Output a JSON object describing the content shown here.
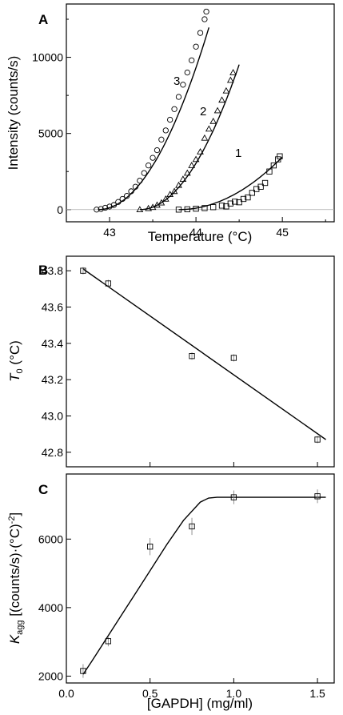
{
  "chart_data": [
    {
      "panel": "A",
      "type": "scatter",
      "xlabel": "Temperature (°C)",
      "ylabel": "Intensity (counts/s)",
      "xlim": [
        42.5,
        45.6
      ],
      "ylim": [
        -800,
        13500
      ],
      "xticks": [
        "43",
        "44",
        "45"
      ],
      "yticks": [
        "0",
        "5000",
        "10000"
      ],
      "series": [
        {
          "name": "1",
          "marker": "square",
          "fit": {
            "T0": 43.8,
            "K": 2400,
            "xmax": 45.0
          },
          "points": [
            [
              43.8,
              0
            ],
            [
              43.9,
              20
            ],
            [
              44.0,
              60
            ],
            [
              44.1,
              100
            ],
            [
              44.2,
              160
            ],
            [
              44.3,
              260
            ],
            [
              44.35,
              210
            ],
            [
              44.4,
              400
            ],
            [
              44.45,
              520
            ],
            [
              44.5,
              480
            ],
            [
              44.55,
              700
            ],
            [
              44.6,
              800
            ],
            [
              44.65,
              1100
            ],
            [
              44.7,
              1350
            ],
            [
              44.75,
              1500
            ],
            [
              44.8,
              1750
            ],
            [
              44.85,
              2500
            ],
            [
              44.9,
              2900
            ],
            [
              44.95,
              3300
            ],
            [
              44.97,
              3500
            ]
          ]
        },
        {
          "name": "2",
          "marker": "triangle",
          "fit": {
            "T0": 43.35,
            "K": 7200,
            "xmax": 44.5
          },
          "points": [
            [
              43.35,
              0
            ],
            [
              43.45,
              80
            ],
            [
              43.5,
              150
            ],
            [
              43.55,
              300
            ],
            [
              43.6,
              450
            ],
            [
              43.65,
              700
            ],
            [
              43.7,
              1000
            ],
            [
              43.75,
              1200
            ],
            [
              43.8,
              1600
            ],
            [
              43.85,
              2000
            ],
            [
              43.9,
              2400
            ],
            [
              43.95,
              2900
            ],
            [
              44.0,
              3300
            ],
            [
              44.05,
              3800
            ],
            [
              44.1,
              4700
            ],
            [
              44.15,
              5300
            ],
            [
              44.2,
              5800
            ],
            [
              44.25,
              6500
            ],
            [
              44.3,
              7200
            ],
            [
              44.35,
              7800
            ],
            [
              44.4,
              8500
            ],
            [
              44.43,
              9000
            ]
          ]
        },
        {
          "name": "3",
          "marker": "circle",
          "fit": {
            "T0": 42.87,
            "K": 7300,
            "xmax": 44.15
          },
          "points": [
            [
              42.85,
              0
            ],
            [
              42.9,
              40
            ],
            [
              42.95,
              120
            ],
            [
              43.0,
              200
            ],
            [
              43.05,
              300
            ],
            [
              43.1,
              500
            ],
            [
              43.15,
              700
            ],
            [
              43.2,
              900
            ],
            [
              43.25,
              1200
            ],
            [
              43.3,
              1500
            ],
            [
              43.35,
              1900
            ],
            [
              43.4,
              2400
            ],
            [
              43.45,
              2900
            ],
            [
              43.5,
              3400
            ],
            [
              43.55,
              3900
            ],
            [
              43.6,
              4600
            ],
            [
              43.65,
              5200
            ],
            [
              43.7,
              5900
            ],
            [
              43.75,
              6600
            ],
            [
              43.8,
              7400
            ],
            [
              43.85,
              8200
            ],
            [
              43.9,
              9000
            ],
            [
              43.95,
              9800
            ],
            [
              44.0,
              10700
            ],
            [
              44.05,
              11600
            ],
            [
              44.1,
              12500
            ],
            [
              44.12,
              13000
            ]
          ]
        }
      ]
    },
    {
      "panel": "B",
      "type": "scatter",
      "xlabel": "",
      "ylabel": "T0 (°C)",
      "xlim": [
        0,
        1.6
      ],
      "ylim": [
        42.72,
        43.88
      ],
      "yticks": [
        "42.8",
        "43.0",
        "43.2",
        "43.4",
        "43.6",
        "43.8"
      ],
      "series": [
        {
          "name": "",
          "x": [
            0.1,
            0.25,
            0.75,
            1.0,
            1.5
          ],
          "y": [
            43.8,
            43.73,
            43.33,
            43.32,
            42.87
          ],
          "err": [
            0.02,
            0.02,
            0.02,
            0.02,
            0.02
          ],
          "fit": {
            "x": [
              0.1,
              1.55
            ],
            "y": [
              43.81,
              42.87
            ]
          }
        }
      ]
    },
    {
      "panel": "C",
      "type": "scatter",
      "xlabel": "[GAPDH] (mg/ml)",
      "ylabel": "Kagg [(counts/s)·(°C)-2]",
      "xlim": [
        0,
        1.6
      ],
      "ylim": [
        1800,
        7900
      ],
      "xticks": [
        "0.0",
        "0.5",
        "1.0",
        "1.5"
      ],
      "yticks": [
        "2000",
        "4000",
        "6000"
      ],
      "series": [
        {
          "name": "",
          "x": [
            0.1,
            0.25,
            0.5,
            0.75,
            1.0,
            1.5
          ],
          "y": [
            2150,
            3020,
            5780,
            6370,
            7220,
            7250
          ],
          "err": [
            200,
            150,
            250,
            250,
            200,
            200
          ],
          "fit": {
            "x": [
              0.1,
              0.15,
              0.2,
              0.3,
              0.4,
              0.5,
              0.6,
              0.7,
              0.8,
              0.85,
              0.9,
              1.0,
              1.2,
              1.55
            ],
            "y": [
              2050,
              2420,
              2800,
              3560,
              4320,
              5080,
              5840,
              6550,
              7080,
              7200,
              7220,
              7220,
              7220,
              7220
            ]
          }
        }
      ]
    }
  ],
  "panels": {
    "A": {
      "letter": "A",
      "xlabel": "Temperature (",
      "xlabel_unit": "°C",
      "xlabel_end": ")",
      "ylabel": "Intensity (counts/s)",
      "labels": [
        "1",
        "2",
        "3"
      ]
    },
    "B": {
      "letter": "B",
      "ylabel_sym": "T",
      "ylabel_sub": "0",
      "ylabel_rest": " (",
      "ylabel_unit": "°C",
      "ylabel_end": ")"
    },
    "C": {
      "letter": "C",
      "ylabel_sym": "K",
      "ylabel_sub": "agg",
      "ylabel_rest": " [(counts/s)·(°C)",
      "ylabel_sup": "-2",
      "ylabel_end": "]",
      "xlabel": "[GAPDH] (mg/ml)"
    }
  }
}
